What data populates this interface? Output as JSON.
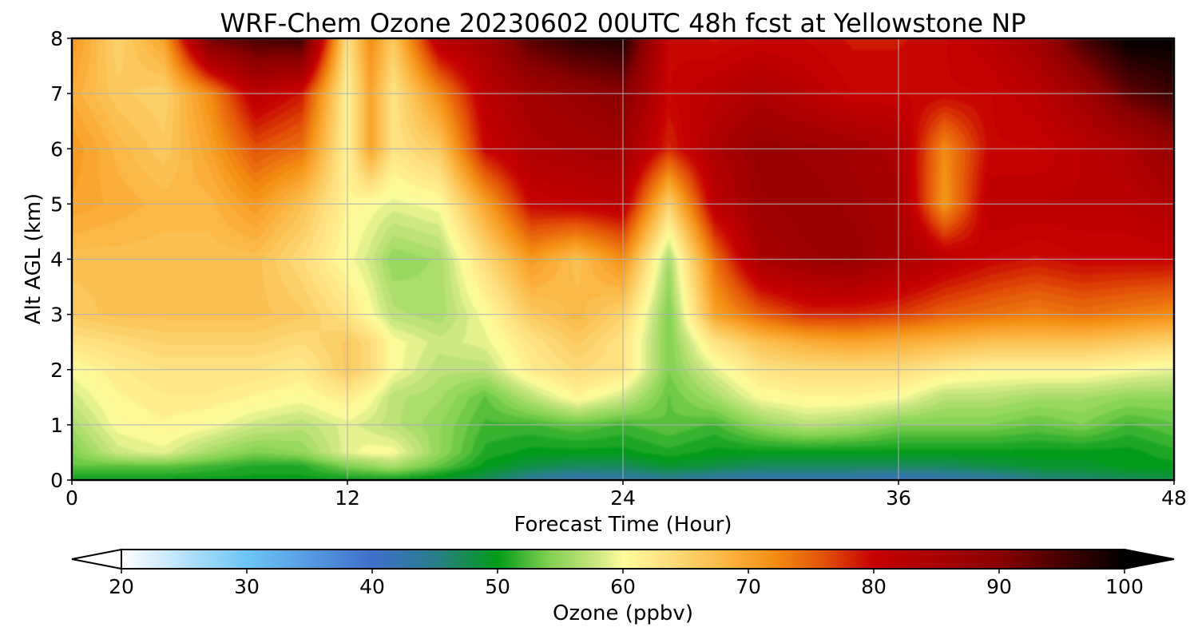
{
  "chart_data": {
    "type": "heatmap",
    "title": "WRF-Chem Ozone  20230602 00UTC 48h fcst at Yellowstone NP",
    "xlabel": "Forecast Time (Hour)",
    "ylabel": "Alt AGL (km)",
    "xlim": [
      0,
      48
    ],
    "ylim": [
      0,
      8
    ],
    "x_ticks": [
      "0",
      "12",
      "24",
      "36",
      "48"
    ],
    "y_ticks": [
      "0",
      "1",
      "2",
      "3",
      "4",
      "5",
      "6",
      "7",
      "8"
    ],
    "grid": true,
    "x": [
      0,
      2,
      4,
      6,
      8,
      10,
      12,
      13,
      14,
      16,
      18,
      20,
      22,
      24,
      26,
      28,
      30,
      32,
      34,
      36,
      38,
      40,
      42,
      44,
      46,
      48
    ],
    "y": [
      0,
      0.25,
      0.5,
      1,
      1.5,
      2,
      2.5,
      3,
      4,
      5,
      6,
      7,
      8
    ],
    "z": [
      [
        50,
        50,
        50,
        50,
        50,
        50,
        50,
        50,
        50,
        49,
        47,
        44,
        42,
        43,
        44,
        43,
        42,
        42,
        42,
        41,
        42,
        43,
        45,
        46,
        47,
        48
      ],
      [
        53,
        53,
        53,
        52,
        51,
        51,
        54,
        55,
        56,
        53,
        50,
        48,
        47,
        47,
        49,
        48,
        47,
        47,
        47,
        47,
        47,
        48,
        49,
        49,
        50,
        50
      ],
      [
        54,
        58,
        59,
        56,
        54,
        55,
        59,
        60,
        60,
        55,
        51,
        50,
        50,
        50,
        51,
        50,
        50,
        50,
        50,
        50,
        50,
        50,
        50,
        50,
        50,
        51
      ],
      [
        56,
        60,
        61,
        60,
        58,
        57,
        59,
        58,
        57,
        55,
        52,
        52,
        53,
        52,
        53,
        52,
        55,
        57,
        56,
        54,
        54,
        54,
        53,
        54,
        52,
        53
      ],
      [
        58,
        61,
        62,
        62,
        61,
        60,
        62,
        60,
        57,
        56,
        53,
        57,
        61,
        58,
        53,
        56,
        60,
        61,
        61,
        60,
        57,
        57,
        56,
        56,
        55,
        55
      ],
      [
        60,
        62,
        63,
        63,
        63,
        62,
        66,
        64,
        60,
        57,
        57,
        62,
        64,
        63,
        54,
        59,
        63,
        64,
        64,
        64,
        62,
        61,
        61,
        61,
        60,
        59
      ],
      [
        63,
        64,
        65,
        65,
        65,
        64,
        66,
        64,
        60,
        58,
        59,
        63,
        66,
        63,
        54,
        63,
        67,
        69,
        70,
        69,
        68,
        67,
        67,
        67,
        66,
        65
      ],
      [
        66,
        67,
        67,
        67,
        67,
        66,
        63,
        60,
        57,
        56,
        60,
        66,
        68,
        65,
        54,
        70,
        75,
        78,
        78,
        77,
        75,
        74,
        73,
        74,
        73,
        72
      ],
      [
        67,
        67,
        67,
        67,
        67,
        64,
        60,
        58,
        55,
        56,
        64,
        71,
        67,
        72,
        56,
        74,
        85,
        87,
        88,
        85,
        82,
        80,
        79,
        80,
        80,
        80
      ],
      [
        70,
        69,
        68,
        68,
        71,
        67,
        61,
        60,
        59,
        60,
        70,
        80,
        81,
        82,
        65,
        82,
        87,
        88,
        87,
        85,
        71,
        82,
        82,
        82,
        82,
        84
      ],
      [
        71,
        68,
        66,
        70,
        76,
        74,
        61,
        70,
        63,
        66,
        80,
        84,
        85,
        86,
        78,
        84,
        88,
        87,
        86,
        84,
        72,
        80,
        80,
        82,
        84,
        88
      ],
      [
        69,
        66,
        65,
        72,
        82,
        79,
        61,
        70,
        63,
        72,
        82,
        86,
        88,
        90,
        80,
        82,
        84,
        82,
        80,
        80,
        80,
        80,
        82,
        86,
        93,
        96
      ],
      [
        71,
        65,
        70,
        92,
        95,
        96,
        63,
        72,
        66,
        83,
        86,
        94,
        97,
        98,
        80,
        79,
        80,
        80,
        79,
        79,
        80,
        82,
        86,
        95,
        100,
        100
      ]
    ],
    "colorbar": {
      "label": "Ozone  (ppbv)",
      "range": [
        20,
        100
      ],
      "ticks": [
        "20",
        "30",
        "40",
        "50",
        "60",
        "70",
        "80",
        "90",
        "100"
      ],
      "extend": "both",
      "stops": [
        {
          "v": 20,
          "c": "#ffffff"
        },
        {
          "v": 30,
          "c": "#6cc5f7"
        },
        {
          "v": 40,
          "c": "#3f6fcc"
        },
        {
          "v": 45,
          "c": "#287e8a"
        },
        {
          "v": 50,
          "c": "#029b18"
        },
        {
          "v": 54,
          "c": "#7fd04f"
        },
        {
          "v": 58,
          "c": "#cde784"
        },
        {
          "v": 60,
          "c": "#fffc9c"
        },
        {
          "v": 64,
          "c": "#fddb7a"
        },
        {
          "v": 68,
          "c": "#fbb844"
        },
        {
          "v": 72,
          "c": "#f48e12"
        },
        {
          "v": 76,
          "c": "#e25208"
        },
        {
          "v": 80,
          "c": "#c70000"
        },
        {
          "v": 90,
          "c": "#8a0000"
        },
        {
          "v": 96,
          "c": "#3a0000"
        },
        {
          "v": 100,
          "c": "#000000"
        }
      ]
    }
  }
}
